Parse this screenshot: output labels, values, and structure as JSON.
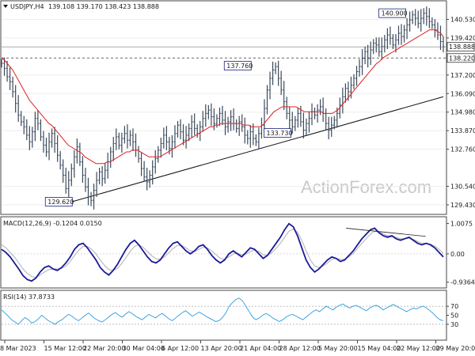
{
  "chart_data": [
    {
      "type": "candlestick",
      "title": "USDJPY,H4",
      "ohlc": "139.108 139.170 138.423 138.888",
      "ylim": [
        129.0,
        141.5
      ],
      "yticks": [
        "140.530",
        "139.420",
        "137.200",
        "136.090",
        "134.980",
        "133.870",
        "132.760",
        "130.540",
        "129.430"
      ],
      "ytick_values": [
        140.53,
        139.42,
        137.2,
        136.09,
        134.98,
        133.87,
        132.76,
        130.54,
        129.43
      ],
      "current_price": "138.888",
      "current_value": 138.888,
      "support_level": "138.220",
      "support_value": 138.22,
      "annotations": [
        {
          "text": "140.900",
          "value": 140.9
        },
        {
          "text": "137.760",
          "value": 137.76
        },
        {
          "text": "133.730",
          "value": 133.73
        },
        {
          "text": "129.620",
          "value": 129.62
        }
      ],
      "series": [
        {
          "values": [
            137.9,
            137.6,
            137.1,
            136.8,
            136.2,
            135.5,
            134.8,
            134.4,
            134.1,
            133.6,
            133.2,
            133.8,
            134.6,
            134.3,
            133.5,
            133.0,
            132.6,
            133.2,
            133.7,
            133.1,
            132.4,
            131.8,
            131.2,
            130.4,
            130.9,
            131.6,
            132.3,
            132.9,
            132.0,
            131.2,
            130.5,
            129.9,
            129.7,
            130.3,
            130.9,
            131.4,
            131.0,
            131.5,
            132.0,
            132.6,
            133.1,
            133.5,
            133.0,
            133.4,
            133.7,
            133.3,
            133.6,
            133.2,
            132.7,
            132.2,
            131.6,
            131.1,
            130.8,
            131.2,
            131.7,
            132.2,
            132.7,
            133.1,
            133.6,
            133.2,
            132.8,
            133.2,
            133.7,
            134.2,
            133.8,
            133.3,
            133.6,
            134.0,
            134.4,
            134.0,
            133.7,
            134.1,
            134.6,
            134.9,
            135.1,
            134.7,
            134.3,
            134.6,
            134.9,
            134.5,
            134.1,
            134.4,
            134.7,
            134.3,
            134.0,
            134.4,
            134.1,
            133.6,
            133.4,
            133.8,
            133.4,
            133.2,
            133.7,
            134.2,
            135.2,
            136.3,
            137.0,
            137.5,
            137.7,
            137.0,
            136.3,
            135.6,
            134.9,
            134.5,
            134.1,
            134.5,
            134.9,
            134.4,
            133.9,
            134.3,
            134.6,
            135.0,
            134.8,
            135.1,
            135.3,
            134.9,
            134.3,
            133.9,
            134.2,
            134.5,
            134.9,
            135.4,
            135.9,
            136.4,
            136.2,
            136.6,
            137.0,
            137.4,
            137.7,
            138.2,
            138.6,
            138.2,
            138.7,
            139.1,
            139.0,
            138.6,
            138.9,
            139.3,
            139.6,
            139.4,
            139.0,
            139.3,
            139.7,
            139.5,
            139.9,
            140.2,
            140.5,
            140.8,
            140.6,
            140.3,
            140.6,
            140.9,
            140.7,
            140.4,
            140.2,
            139.9,
            139.6,
            139.2,
            138.9
          ]
        },
        {
          "name": "MA",
          "values": [
            138.2,
            138.1,
            137.9,
            137.7,
            137.5,
            137.2,
            136.9,
            136.6,
            136.3,
            136.0,
            135.7,
            135.5,
            135.3,
            135.1,
            134.9,
            134.7,
            134.5,
            134.3,
            134.2,
            134.0,
            133.8,
            133.6,
            133.4,
            133.2,
            133.0,
            132.9,
            132.8,
            132.7,
            132.6,
            132.5,
            132.3,
            132.2,
            132.1,
            132.0,
            131.9,
            131.9,
            131.9,
            131.9,
            132.0,
            132.0,
            132.1,
            132.2,
            132.3,
            132.4,
            132.5,
            132.6,
            132.6,
            132.7,
            132.7,
            132.7,
            132.6,
            132.5,
            132.4,
            132.3,
            132.3,
            132.3,
            132.3,
            132.3,
            132.4,
            132.5,
            132.6,
            132.7,
            132.8,
            132.9,
            133.0,
            133.1,
            133.2,
            133.3,
            133.4,
            133.5,
            133.6,
            133.7,
            133.8,
            133.9,
            134.0,
            134.1,
            134.1,
            134.2,
            134.2,
            134.3,
            134.3,
            134.3,
            134.3,
            134.3,
            134.3,
            134.3,
            134.3,
            134.2,
            134.2,
            134.2,
            134.1,
            134.1,
            134.1,
            134.1,
            134.2,
            134.4,
            134.6,
            134.8,
            135.0,
            135.1,
            135.2,
            135.3,
            135.3,
            135.3,
            135.3,
            135.3,
            135.3,
            135.2,
            135.1,
            135.0,
            135.0,
            135.0,
            135.0,
            135.0,
            135.0,
            135.0,
            134.9,
            134.9,
            134.9,
            134.9,
            135.0,
            135.1,
            135.3,
            135.5,
            135.7,
            135.9,
            136.1,
            136.3,
            136.5,
            136.7,
            136.9,
            137.1,
            137.3,
            137.5,
            137.7,
            137.9,
            138.0,
            138.2,
            138.3,
            138.4,
            138.5,
            138.6,
            138.7,
            138.8,
            138.9,
            139.0,
            139.1,
            139.2,
            139.3,
            139.4,
            139.5,
            139.6,
            139.7,
            139.8,
            139.9,
            139.9,
            139.9,
            139.8,
            139.7,
            139.5
          ]
        }
      ],
      "trendline": [
        {
          "x": 0.16,
          "y": 129.62
        },
        {
          "x": 1.0,
          "y": 135.9
        }
      ]
    },
    {
      "type": "line",
      "title": "MACD(12,26,9) -0.1204 0.0150",
      "ylim": [
        -1.05,
        1.15
      ],
      "yticks": [
        "1.0075",
        "0.00",
        "-0.9364"
      ],
      "ytick_values": [
        1.0075,
        0.0,
        -0.9364
      ],
      "series": [
        {
          "name": "MACD",
          "values": [
            0.15,
            0.05,
            -0.1,
            -0.3,
            -0.5,
            -0.72,
            -0.85,
            -0.9,
            -0.8,
            -0.6,
            -0.45,
            -0.4,
            -0.5,
            -0.55,
            -0.45,
            -0.3,
            -0.1,
            0.15,
            0.3,
            0.35,
            0.2,
            0.0,
            -0.2,
            -0.45,
            -0.6,
            -0.7,
            -0.55,
            -0.35,
            -0.1,
            0.15,
            0.35,
            0.45,
            0.3,
            0.1,
            -0.1,
            -0.25,
            -0.3,
            -0.2,
            0.0,
            0.2,
            0.35,
            0.4,
            0.25,
            0.1,
            0.0,
            0.1,
            0.25,
            0.3,
            0.15,
            -0.05,
            -0.2,
            -0.3,
            -0.2,
            0.0,
            0.1,
            0.0,
            -0.1,
            0.05,
            0.2,
            0.15,
            0.0,
            -0.15,
            -0.05,
            0.15,
            0.35,
            0.55,
            0.8,
            1.0,
            0.9,
            0.6,
            0.2,
            -0.2,
            -0.45,
            -0.6,
            -0.5,
            -0.35,
            -0.2,
            -0.1,
            -0.15,
            -0.25,
            -0.2,
            -0.05,
            0.1,
            0.3,
            0.5,
            0.65,
            0.8,
            0.85,
            0.7,
            0.6,
            0.55,
            0.6,
            0.5,
            0.45,
            0.5,
            0.55,
            0.45,
            0.35,
            0.3,
            0.35,
            0.3,
            0.2,
            0.05,
            -0.1
          ]
        },
        {
          "name": "Signal",
          "values": [
            0.3,
            0.2,
            0.05,
            -0.1,
            -0.3,
            -0.5,
            -0.65,
            -0.75,
            -0.78,
            -0.7,
            -0.6,
            -0.52,
            -0.5,
            -0.5,
            -0.48,
            -0.4,
            -0.25,
            -0.05,
            0.12,
            0.25,
            0.25,
            0.15,
            0.0,
            -0.2,
            -0.38,
            -0.52,
            -0.55,
            -0.48,
            -0.32,
            -0.12,
            0.08,
            0.25,
            0.3,
            0.22,
            0.08,
            -0.06,
            -0.16,
            -0.18,
            -0.1,
            0.04,
            0.18,
            0.28,
            0.28,
            0.2,
            0.1,
            0.08,
            0.15,
            0.22,
            0.2,
            0.1,
            -0.03,
            -0.15,
            -0.18,
            -0.1,
            0.0,
            0.02,
            -0.03,
            -0.01,
            0.08,
            0.12,
            0.08,
            -0.03,
            -0.05,
            0.04,
            0.18,
            0.35,
            0.55,
            0.75,
            0.82,
            0.72,
            0.45,
            0.1,
            -0.2,
            -0.4,
            -0.45,
            -0.4,
            -0.3,
            -0.18,
            -0.15,
            -0.18,
            -0.18,
            -0.1,
            0.02,
            0.18,
            0.35,
            0.5,
            0.65,
            0.75,
            0.73,
            0.66,
            0.6,
            0.6,
            0.55,
            0.5,
            0.5,
            0.52,
            0.48,
            0.41,
            0.35,
            0.35,
            0.32,
            0.26,
            0.15,
            0.02
          ]
        }
      ],
      "divergence": [
        {
          "x": 0.78,
          "y": 0.85
        },
        {
          "x": 0.96,
          "y": 0.58
        }
      ]
    },
    {
      "type": "line",
      "title": "RSI(14) 37.8733",
      "ylim": [
        0,
        100
      ],
      "yticks": [
        "70",
        "50",
        "30"
      ],
      "ytick_values": [
        70,
        50,
        30
      ],
      "series": [
        {
          "name": "RSI",
          "values": [
            62,
            55,
            48,
            40,
            35,
            30,
            38,
            45,
            40,
            33,
            36,
            42,
            50,
            44,
            38,
            34,
            30,
            36,
            40,
            46,
            52,
            48,
            42,
            38,
            44,
            50,
            55,
            48,
            42,
            38,
            35,
            40,
            46,
            52,
            56,
            50,
            46,
            52,
            58,
            54,
            48,
            44,
            40,
            46,
            52,
            48,
            44,
            50,
            54,
            48,
            42,
            38,
            44,
            50,
            56,
            60,
            54,
            48,
            52,
            57,
            53,
            48,
            44,
            40,
            36,
            38,
            45,
            55,
            70,
            78,
            85,
            88,
            82,
            70,
            58,
            46,
            40,
            44,
            50,
            54,
            50,
            44,
            40,
            36,
            40,
            46,
            50,
            52,
            48,
            44,
            40,
            46,
            52,
            58,
            62,
            58,
            64,
            70,
            66,
            62,
            68,
            72,
            75,
            70,
            66,
            70,
            72,
            68,
            64,
            60,
            66,
            70,
            72,
            68,
            62,
            66,
            70,
            74,
            70,
            66,
            62,
            58,
            62,
            66,
            64,
            68,
            70,
            66,
            60,
            54,
            46,
            40,
            38
          ]
        }
      ],
      "levels": [
        70,
        30
      ]
    }
  ],
  "xaxis": {
    "labels": [
      "8 Mar 2023",
      "15 Mar 12:00",
      "22 Mar 20:00",
      "30 Mar 04:00",
      "6 Apr 12:00",
      "13 Apr 20:00",
      "21 Apr 04:00",
      "28 Apr 12:00",
      "5 May 20:00",
      "15 May 04:00",
      "22 May 12:00",
      "29 May 20:00"
    ]
  },
  "watermark": "ActionForex.com",
  "colors": {
    "price": "#3c4a5c",
    "ma": "#e02020",
    "trendline": "#111111",
    "macd": "#1a1a99",
    "signal": "#b0b0b0",
    "rsi": "#2b9be0",
    "grid": "#eeeeee",
    "annotation_border": "#1a237e"
  }
}
